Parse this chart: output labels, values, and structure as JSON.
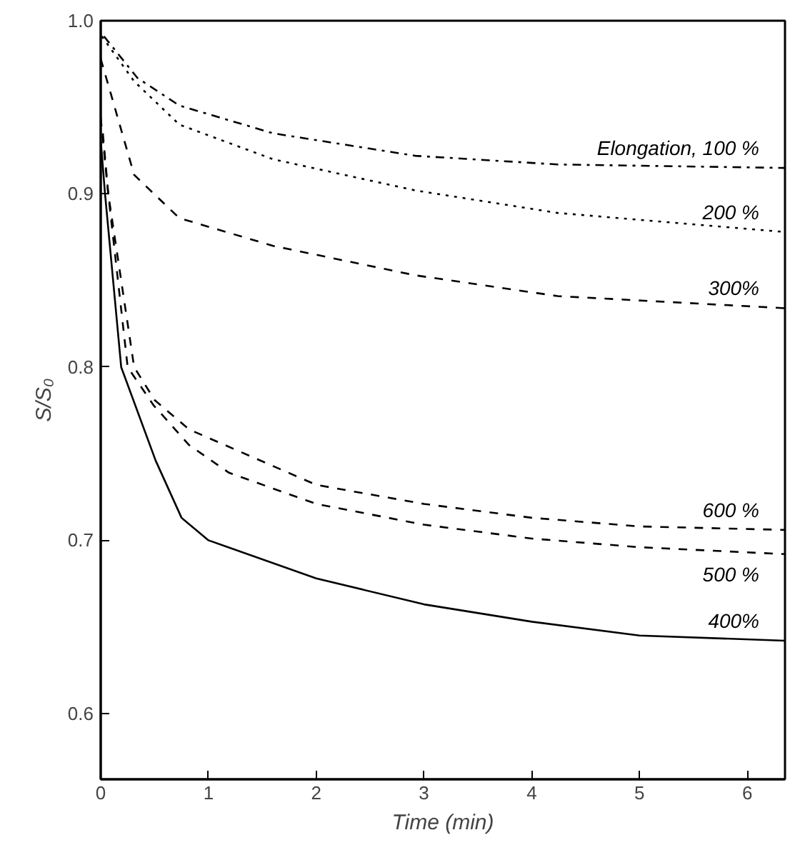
{
  "chart_data": {
    "type": "line",
    "xlabel": "Time (min)",
    "ylabel": "S/S₀",
    "xlim": [
      0,
      6.35
    ],
    "ylim": [
      0.562,
      1.0
    ],
    "xticks": [
      0,
      1,
      2,
      3,
      4,
      5,
      6
    ],
    "yticks": [
      0.6,
      0.7,
      0.8,
      0.9,
      {
        "value": 1,
        "label": "1.0"
      }
    ],
    "grid": false,
    "marker": "none",
    "series": [
      {
        "name": "Elongation, 100 %",
        "color": "#000000",
        "line_style": "dashdot",
        "x": [
          0.03,
          0.34,
          0.73,
          1.6,
          2.92,
          4.24,
          6.35
        ],
        "values": [
          0.991,
          0.967,
          0.951,
          0.935,
          0.922,
          0.917,
          0.915
        ]
      },
      {
        "name": "200 %",
        "color": "#000000",
        "line_style": "dotted",
        "x": [
          0.01,
          0.31,
          0.73,
          1.6,
          2.92,
          4.24,
          6.35
        ],
        "values": [
          0.991,
          0.965,
          0.94,
          0.92,
          0.902,
          0.889,
          0.878
        ]
      },
      {
        "name": "300%",
        "color": "#000000",
        "line_style": "dashed",
        "x": [
          0,
          0.13,
          0.31,
          0.73,
          1.6,
          2.92,
          4.24,
          6.35
        ],
        "values": [
          0.978,
          0.95,
          0.911,
          0.886,
          0.87,
          0.853,
          0.841,
          0.834
        ]
      },
      {
        "name": "400%",
        "color": "#000000",
        "line_style": "solid",
        "x": [
          0,
          0.04,
          0.19,
          0.51,
          0.75,
          1,
          2,
          3,
          4,
          5,
          6.35
        ],
        "values": [
          0.931,
          0.9,
          0.8,
          0.746,
          0.713,
          0.7,
          0.678,
          0.663,
          0.653,
          0.645,
          0.642
        ]
      },
      {
        "name": "500 %",
        "color": "#000000",
        "line_style": "dashed",
        "x": [
          0,
          0.07,
          0.25,
          0.49,
          0.82,
          1.19,
          2,
          3,
          4,
          5,
          6.35
        ],
        "values": [
          0.944,
          0.9,
          0.8,
          0.778,
          0.755,
          0.739,
          0.721,
          0.709,
          0.701,
          0.696,
          0.692
        ]
      },
      {
        "name": "600 %",
        "color": "#000000",
        "line_style": "dashed",
        "x": [
          0.02,
          0.07,
          0.31,
          0.5,
          0.82,
          2,
          3,
          4,
          5,
          6.35
        ],
        "values": [
          0.935,
          0.9,
          0.8,
          0.781,
          0.764,
          0.732,
          0.721,
          0.713,
          0.708,
          0.706
        ]
      }
    ]
  }
}
